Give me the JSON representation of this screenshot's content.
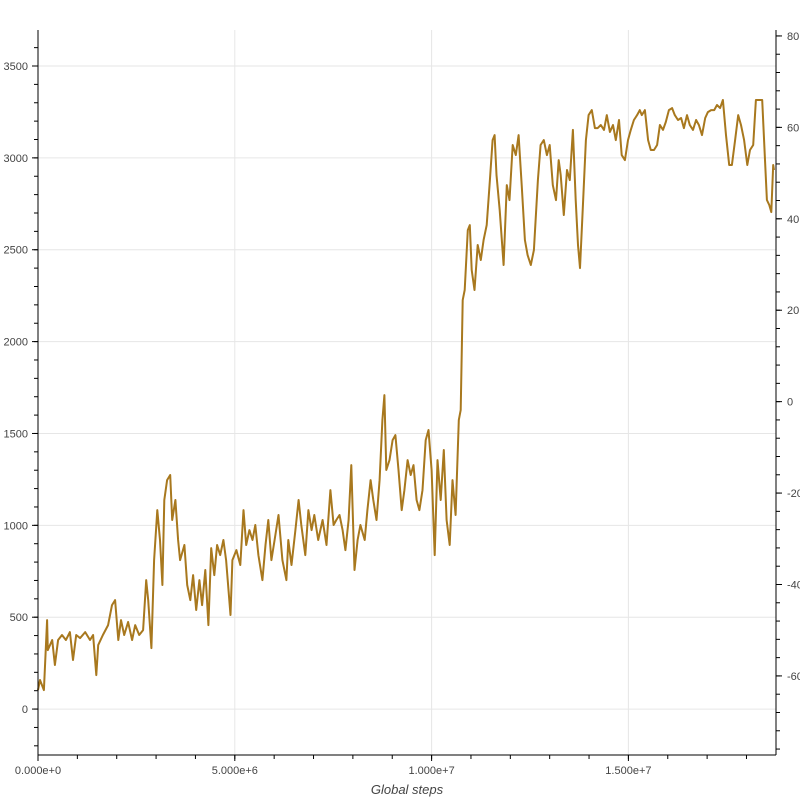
{
  "chart_data": {
    "type": "line",
    "title": "",
    "xlabel": "Global steps",
    "ylabel": "",
    "xlim": [
      0,
      18750000.0
    ],
    "ylim": [
      -250,
      3696
    ],
    "y2lim": [
      -77.3,
      81.3
    ],
    "grid": true,
    "legend": "none",
    "line_color": "#a8781e",
    "x_ticks": [
      {
        "value": 0,
        "label": "0.000e+0"
      },
      {
        "value": 5000000,
        "label": "5.000e+6"
      },
      {
        "value": 10000000,
        "label": "1.000e+7"
      },
      {
        "value": 15000000,
        "label": "1.500e+7"
      }
    ],
    "y_ticks": [
      {
        "value": 0,
        "label": "0"
      },
      {
        "value": 500,
        "label": "500"
      },
      {
        "value": 1000,
        "label": "1000"
      },
      {
        "value": 1500,
        "label": "1500"
      },
      {
        "value": 2000,
        "label": "2000"
      },
      {
        "value": 2500,
        "label": "2500"
      },
      {
        "value": 3000,
        "label": "3000"
      },
      {
        "value": 3500,
        "label": "3500"
      }
    ],
    "y2_ticks": [
      {
        "value": 80,
        "label": "80"
      },
      {
        "value": 60,
        "label": "60"
      },
      {
        "value": 40,
        "label": "40"
      },
      {
        "value": 20,
        "label": "20"
      },
      {
        "value": 0,
        "label": "0"
      },
      {
        "value": -20,
        "label": "-20"
      },
      {
        "value": -40,
        "label": "-40"
      },
      {
        "value": -60,
        "label": "-60"
      }
    ],
    "series": [
      {
        "x": [
          0,
          50000.0,
          150000.0,
          230000.0,
          250000.0,
          360000.0,
          430000.0,
          510000.0,
          610000.0,
          710000.0,
          810000.0,
          890000.0,
          970000.0,
          1070000.0,
          1200000.0,
          1320000.0,
          1400000.0,
          1480000.0,
          1530000.0,
          1650000.0,
          1780000.0,
          1880000.0,
          1960000.0,
          2040000.0,
          2110000.0,
          2190000.0,
          2290000.0,
          2390000.0,
          2470000.0,
          2570000.0,
          2670000.0,
          2750000.0,
          2800000.0,
          2880000.0,
          2950000.0,
          3030000.0,
          3100000.0,
          3160000.0,
          3210000.0,
          3280000.0,
          3360000.0,
          3410000.0,
          3490000.0,
          3560000.0,
          3610000.0,
          3720000.0,
          3790000.0,
          3870000.0,
          3940000.0,
          4020000.0,
          4100000.0,
          4170000.0,
          4250000.0,
          4330000.0,
          4400000.0,
          4480000.0,
          4550000.0,
          4630000.0,
          4710000.0,
          4780000.0,
          4890000.0,
          4940000.0,
          5040000.0,
          5140000.0,
          5220000.0,
          5290000.0,
          5370000.0,
          5450000.0,
          5520000.0,
          5600000.0,
          5700000.0,
          5780000.0,
          5850000.0,
          5930000.0,
          6010000.0,
          6110000.0,
          6210000.0,
          6310000.0,
          6360000.0,
          6440000.0,
          6540000.0,
          6620000.0,
          6690000.0,
          6790000.0,
          6870000.0,
          6950000.0,
          7020000.0,
          7120000.0,
          7230000.0,
          7330000.0,
          7430000.0,
          7510000.0,
          7580000.0,
          7660000.0,
          7740000.0,
          7810000.0,
          7890000.0,
          7960000.0,
          8040000.0,
          8120000.0,
          8190000.0,
          8300000.0,
          8370000.0,
          8450000.0,
          8520000.0,
          8600000.0,
          8680000.0,
          8750000.0,
          8800000.0,
          8850000.0,
          8930000.0,
          9010000.0,
          9080000.0,
          9160000.0,
          9240000.0,
          9310000.0,
          9390000.0,
          9470000.0,
          9540000.0,
          9620000.0,
          9690000.0,
          9770000.0,
          9850000.0,
          9920000.0,
          10000000.0,
          10080000.0,
          10150000.0,
          10230000.0,
          10310000.0,
          10380000.0,
          10460000.0,
          10530000.0,
          10610000.0,
          10690000.0,
          10740000.0,
          10790000.0,
          10840000.0,
          10920000.0,
          10970000.0,
          11020000.0,
          11090000.0,
          11170000.0,
          11250000.0,
          11320000.0,
          11400000.0,
          11480000.0,
          11550000.0,
          11600000.0,
          11650000.0,
          11730000.0,
          11830000.0,
          11910000.0,
          11980000.0,
          12060000.0,
          12140000.0,
          12210000.0,
          12290000.0,
          12370000.0,
          12440000.0,
          12520000.0,
          12600000.0,
          12700000.0,
          12770000.0,
          12850000.0,
          12930000.0,
          13000000.0,
          13080000.0,
          13160000.0,
          13230000.0,
          13280000.0,
          13360000.0,
          13440000.0,
          13510000.0,
          13590000.0,
          13660000.0,
          13720000.0,
          13770000.0,
          13840000.0,
          13920000.0,
          13990000.0,
          14070000.0,
          14150000.0,
          14220000.0,
          14300000.0,
          14380000.0,
          14450000.0,
          14530000.0,
          14610000.0,
          14680000.0,
          14760000.0,
          14830000.0,
          14910000.0,
          14990000.0,
          15060000.0,
          15140000.0,
          15220000.0,
          15290000.0,
          15340000.0,
          15420000.0,
          15500000.0,
          15570000.0,
          15650000.0,
          15730000.0,
          15800000.0,
          15880000.0,
          15950000.0,
          16030000.0,
          16110000.0,
          16180000.0,
          16260000.0,
          16340000.0,
          16410000.0,
          16490000.0,
          16560000.0,
          16640000.0,
          16720000.0,
          16790000.0,
          16870000.0,
          16950000.0,
          17020000.0,
          17100000.0,
          17180000.0,
          17250000.0,
          17330000.0,
          17400000.0,
          17480000.0,
          17560000.0,
          17630000.0,
          17710000.0,
          17790000.0,
          17860000.0,
          17940000.0,
          18020000.0,
          18090000.0,
          18170000.0,
          18240000.0,
          18320000.0,
          18400000.0,
          18470000.0,
          18520000.0,
          18580000.0,
          18630000.0,
          18680000.0,
          18700000.0
        ],
        "y": [
          103,
          158,
          103,
          484,
          321,
          376,
          240,
          376,
          403,
          376,
          419,
          267,
          403,
          386,
          419,
          376,
          403,
          185,
          348,
          403,
          457,
          566,
          593,
          376,
          484,
          403,
          474,
          376,
          457,
          403,
          430,
          702,
          593,
          332,
          811,
          1083,
          920,
          675,
          1138,
          1246,
          1274,
          1029,
          1138,
          920,
          811,
          893,
          675,
          593,
          729,
          539,
          702,
          566,
          757,
          457,
          876,
          729,
          893,
          838,
          920,
          811,
          512,
          811,
          865,
          784,
          1083,
          893,
          974,
          920,
          1002,
          838,
          702,
          893,
          1029,
          811,
          920,
          1056,
          811,
          702,
          920,
          784,
          974,
          1138,
          1002,
          838,
          1083,
          974,
          1056,
          920,
          1029,
          893,
          1192,
          1002,
          1029,
          1056,
          974,
          865,
          1029,
          1328,
          757,
          920,
          1002,
          920,
          1083,
          1246,
          1138,
          1029,
          1246,
          1573,
          1709,
          1301,
          1355,
          1464,
          1491,
          1301,
          1083,
          1192,
          1355,
          1274,
          1328,
          1138,
          1083,
          1192,
          1464,
          1519,
          1301,
          838,
          1355,
          1138,
          1410,
          1029,
          893,
          1246,
          1056,
          1573,
          1628,
          2226,
          2281,
          2607,
          2634,
          2390,
          2281,
          2526,
          2444,
          2553,
          2634,
          2879,
          3097,
          3124,
          2907,
          2716,
          2417,
          2852,
          2770,
          3070,
          3015,
          3124,
          2852,
          2553,
          2471,
          2417,
          2498,
          2879,
          3070,
          3097,
          3015,
          3070,
          2852,
          2770,
          2988,
          2907,
          2689,
          2934,
          2879,
          3152,
          2770,
          2526,
          2400,
          2716,
          3097,
          3233,
          3260,
          3162,
          3162,
          3179,
          3152,
          3233,
          3141,
          3179,
          3097,
          3206,
          3015,
          2988,
          3097,
          3152,
          3206,
          3233,
          3260,
          3233,
          3260,
          3097,
          3043,
          3043,
          3070,
          3179,
          3152,
          3195,
          3260,
          3271,
          3233,
          3206,
          3217,
          3162,
          3233,
          3179,
          3152,
          3206,
          3179,
          3124,
          3217,
          3249,
          3260,
          3260,
          3288,
          3271,
          3315,
          3124,
          2961,
          2961,
          3097,
          3233,
          3179,
          3097,
          2961,
          3043,
          3070,
          3315,
          3315,
          3315,
          2988,
          2771,
          2743,
          2705,
          2961,
          2934
        ]
      }
    ]
  }
}
